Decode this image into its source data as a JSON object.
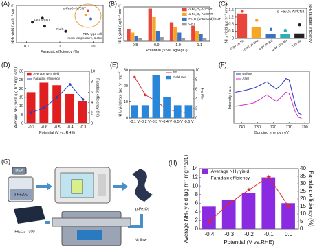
{
  "chart_data": [
    {
      "type": "scatter",
      "label": "(A)",
      "xlabel": "Faradaic efficiency (%)",
      "ylabel": "NH₃ yield (μg h⁻¹ cm⁻²)",
      "xscale": "log",
      "xlim": [
        0.05,
        20
      ],
      "xticks": [
        0.1,
        1,
        10
      ],
      "ylim": [
        0,
        10
      ],
      "points": [
        {
          "x": 0.15,
          "y": 5.5,
          "color": "#222222",
          "label": "Fe₂O₃/CNT"
        },
        {
          "x": 0.3,
          "y": 6.6,
          "color": "#222222"
        },
        {
          "x": 0.35,
          "y": 4.4,
          "color": "#222222"
        },
        {
          "x": 1.5,
          "y": 3.0,
          "color": "#222222",
          "label": "Ru/C"
        },
        {
          "x": 7,
          "y": 8.6,
          "color": "#e8453c",
          "label": "α-Fe₂O₃-Ar/CNT"
        },
        {
          "x": 6,
          "y": 7.4,
          "color": "#f5a623"
        },
        {
          "x": 8.5,
          "y": 6.4,
          "color": "#3b73c4"
        }
      ],
      "annotations": [
        "PEM type cell",
        "room temperature, 1 atm"
      ]
    },
    {
      "type": "bar",
      "label": "(B)",
      "xlabel": "Potential (V vs. Ag/AgCl)",
      "ylabel": "NH₃ yield (μg h⁻¹ cm⁻²)",
      "categories": [
        "-0.8",
        "-0.9",
        "-1.0",
        "-1.1"
      ],
      "ylim": [
        0,
        1
      ],
      "legend": "upper-right",
      "series": [
        {
          "name": "α-Fe₂O₃-Ar/CNT",
          "color": "#e8453c",
          "mark": "bar",
          "values": [
            0.35,
            0.95,
            0.55,
            0.45
          ]
        },
        {
          "name": "α-Fe₂O₃-Air/CNT",
          "color": "#f5a623",
          "mark": "bar",
          "values": [
            0.25,
            0.7,
            0.4,
            0.3
          ]
        },
        {
          "name": "Fe₂O₃(untreated)/CNT",
          "color": "#3b73c4",
          "mark": "bar",
          "values": [
            0.15,
            0.3,
            0.25,
            0.2
          ]
        },
        {
          "name": "CNT",
          "color": "#9a9a9a",
          "mark": "bar",
          "values": [
            0.08,
            0.12,
            0.1,
            0.08
          ]
        }
      ]
    },
    {
      "type": "bar",
      "label": "(C)",
      "title": "α-Fe₂O₃-Ar/CNT",
      "ylabel": "NH₃ yield (μg h⁻¹ cm⁻²)",
      "y2label": "NH₃ faradaic efficiency",
      "categories": [
        "-0.9V 1h 1st",
        "-0.9V 1h 2nd",
        "-0.9V 4h 3rd",
        "-0.9V 10h 4th",
        "-0.9V av."
      ],
      "ylim": [
        0,
        1.7
      ],
      "yticks": [
        0,
        0.4,
        0.8,
        1.2,
        1.6
      ],
      "y2lim": [
        0,
        10
      ],
      "series": [
        {
          "mark": "bar",
          "colors": [
            "#e8453c",
            "#f5a623",
            "#3b73c4",
            "#2ab0b0",
            "#222222"
          ],
          "values": [
            1.4,
            0.65,
            0.25,
            0.25,
            0.28
          ]
        },
        {
          "mark": "dot",
          "axis": "y2",
          "colors": [
            "#e8453c",
            "#f5a623",
            "#3b73c4",
            "#2ab0b0",
            "#222222"
          ],
          "values": [
            9.0,
            6.0,
            3.0,
            2.5,
            4.5
          ]
        }
      ]
    },
    {
      "type": "bar",
      "label": "(D)",
      "xlabel": "Potential (V vs. RHE)",
      "ylabel": "Average NH₃ yield (μg h⁻¹ mg⁻¹cat.)",
      "y2label": "Faradaic efficiency (%)",
      "categories": [
        "-0.7",
        "-0.6",
        "-0.5",
        "-0.4",
        "-0.3"
      ],
      "ylim": [
        0,
        30
      ],
      "yticks": [
        0,
        5,
        10,
        15,
        20,
        25,
        30
      ],
      "y2lim": [
        0,
        10
      ],
      "y2ticks": [
        0,
        2,
        4,
        6,
        8,
        10
      ],
      "legend": "upper-left",
      "series": [
        {
          "name": "Average NH₃ yield",
          "color": "#e02020",
          "mark": "bar",
          "values": [
            18,
            23.5,
            22,
            17,
            13
          ]
        },
        {
          "name": "Faradaic efficiency",
          "color": "#2040c0",
          "mark": "line",
          "axis": "y2",
          "values": [
            2.1,
            3.0,
            5.0,
            7.5,
            4.6
          ]
        }
      ]
    },
    {
      "type": "bar",
      "label": "(E)",
      "ylabel": "NH₃ yield rate (μg h⁻¹ mg⁻¹)",
      "y2label": "FE (%)",
      "categories": [
        "-0.1 V",
        "-0.2 V",
        "-0.3 V",
        "-0.4 V",
        "-0.5 V",
        "-0.6 V"
      ],
      "ylim": [
        0,
        30
      ],
      "yticks": [
        0,
        10,
        20,
        30
      ],
      "y2lim": [
        0,
        10
      ],
      "y2ticks": [
        0,
        2,
        4,
        6,
        8,
        10
      ],
      "legend": "upper-right",
      "series": [
        {
          "name": "FE",
          "color": "#d03030",
          "mark": "line",
          "axis": "y2",
          "values": [
            8.5,
            4.8,
            3.5,
            1.8,
            1.4,
            1.0
          ]
        },
        {
          "name": "Yield rate",
          "color": "#2a86d8",
          "mark": "bar",
          "values": [
            8,
            8,
            27,
            13,
            8,
            8
          ]
        }
      ]
    },
    {
      "type": "line",
      "label": "(F)",
      "xlabel": "Bonding energy / eV",
      "ylabel": "Intensity / a.u.",
      "x": [
        744,
        740,
        736,
        732,
        728,
        724,
        721,
        718,
        715,
        712,
        710,
        708,
        706,
        704,
        702
      ],
      "xlim": [
        745,
        697
      ],
      "xticks": [
        740,
        730,
        720,
        710,
        700
      ],
      "ylim": [
        0,
        1
      ],
      "legend": "upper-left",
      "series": [
        {
          "name": "Before",
          "color": "#2030c0",
          "values": [
            0.6,
            0.62,
            0.65,
            0.68,
            0.74,
            0.8,
            0.72,
            0.66,
            0.74,
            0.86,
            0.84,
            0.6,
            0.35,
            0.2,
            0.17
          ]
        },
        {
          "name": "After",
          "color": "#d030c0",
          "values": [
            0.33,
            0.35,
            0.37,
            0.4,
            0.47,
            0.55,
            0.48,
            0.42,
            0.5,
            0.6,
            0.58,
            0.4,
            0.22,
            0.12,
            0.1
          ]
        }
      ]
    },
    {
      "type": "bar",
      "label": "(H)",
      "xlabel": "Potential (V vs.RHE)",
      "ylabel": "Average NH₃ yield (μg h⁻¹ mg⁻¹cat.)",
      "y2label": "Faradaic efficiency (%)",
      "categories": [
        "-0.4",
        "-0.3",
        "-0.2",
        "-0.1",
        "0.0"
      ],
      "ylim": [
        0,
        14
      ],
      "yticks": [
        0,
        2,
        4,
        6,
        8,
        10,
        12,
        14
      ],
      "y2lim": [
        0,
        40
      ],
      "y2ticks": [
        0,
        5,
        10,
        15,
        20,
        25,
        30,
        35,
        40
      ],
      "legend": "upper-left",
      "ycolor": "#8a2be2",
      "y2color": "#e02828",
      "series": [
        {
          "name": "Average NH₃ yield",
          "color": "#8a2be2",
          "mark": "bar",
          "values": [
            5.2,
            6.8,
            8.3,
            12.0,
            6.0
          ]
        },
        {
          "name": "Faradaic efficiency",
          "color": "#e02828",
          "mark": "line",
          "marker": "star",
          "axis": "y2",
          "values": [
            5,
            17,
            26,
            34.5,
            15
          ]
        }
      ]
    }
  ],
  "diagram": {
    "label": "(G)",
    "texts": [
      "DEX",
      "α-Fe₂O₃",
      "p-Fe₂O₃",
      "Fe₂O₃ - 300",
      "N₂ flow"
    ]
  }
}
